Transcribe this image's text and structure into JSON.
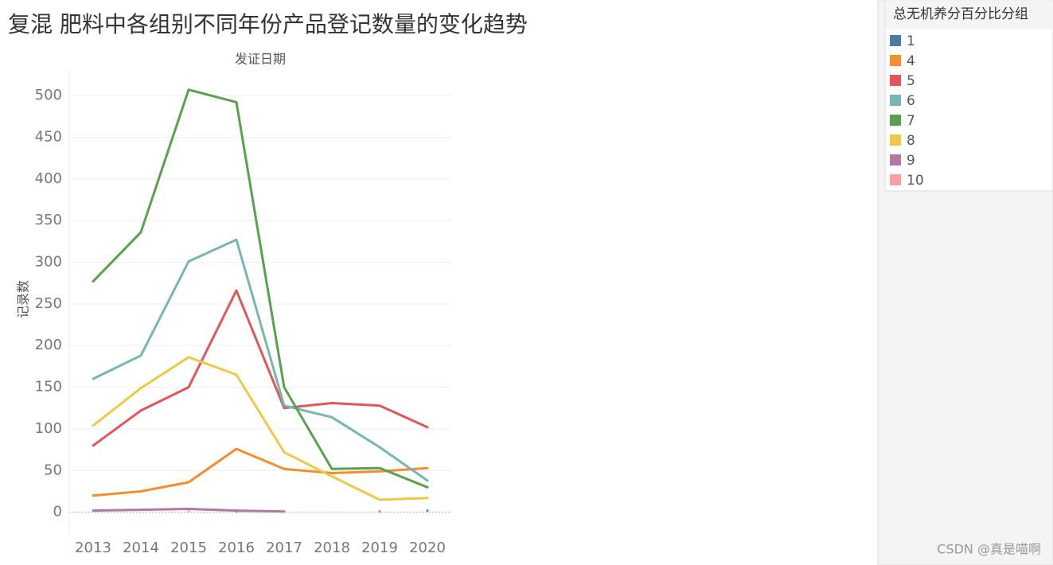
{
  "chart_data": {
    "type": "line",
    "title": "复混 肥料中各组别不同年份产品登记数量的变化趋势",
    "x_label": "发证日期",
    "y_label": "记录数",
    "legend_title": "总无机养分百分比分组",
    "legend": "right",
    "grid": true,
    "categories": [
      "2013",
      "2014",
      "2015",
      "2016",
      "2017",
      "2018",
      "2019",
      "2020"
    ],
    "ylim": [
      -27,
      532
    ],
    "yticks": [
      0,
      50,
      100,
      150,
      200,
      250,
      300,
      350,
      400,
      450,
      500
    ],
    "series": [
      {
        "name": "1",
        "color": "#4e79a7",
        "values": [
          null,
          null,
          null,
          1,
          null,
          null,
          null,
          2
        ]
      },
      {
        "name": "4",
        "color": "#f28e2b",
        "values": [
          20,
          25,
          36,
          76,
          52,
          47,
          49,
          53
        ]
      },
      {
        "name": "5",
        "color": "#e15759",
        "values": [
          80,
          122,
          150,
          266,
          125,
          131,
          128,
          102
        ]
      },
      {
        "name": "6",
        "color": "#76b7b2",
        "values": [
          160,
          188,
          301,
          327,
          128,
          114,
          78,
          38
        ]
      },
      {
        "name": "7",
        "color": "#59a14f",
        "values": [
          277,
          336,
          507,
          492,
          150,
          52,
          53,
          30
        ]
      },
      {
        "name": "8",
        "color": "#edc948",
        "values": [
          104,
          149,
          186,
          165,
          72,
          43,
          15,
          17
        ]
      },
      {
        "name": "9",
        "color": "#b07aa1",
        "values": [
          2,
          3,
          4,
          2,
          1,
          null,
          1,
          null
        ]
      },
      {
        "name": "10",
        "color": "#ff9da7",
        "values": [
          null,
          null,
          1,
          null,
          null,
          null,
          null,
          null
        ]
      }
    ]
  },
  "watermark": "CSDN @真是喵啊"
}
